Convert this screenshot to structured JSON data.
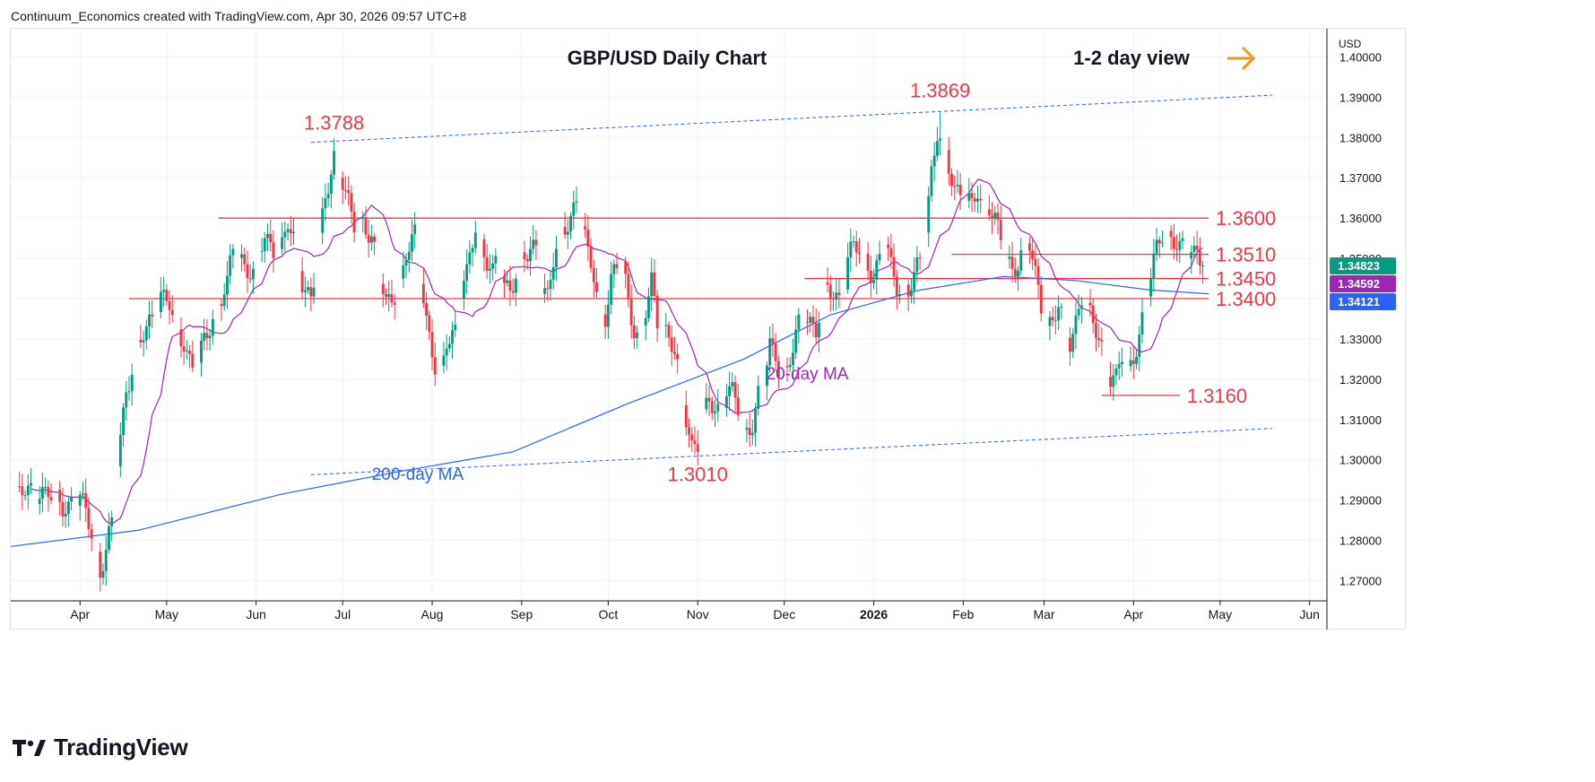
{
  "header": {
    "credit": "Continuum_Economics created with TradingView.com, Apr 30, 2026 09:57 UTC+8"
  },
  "footer": {
    "logo_text": "TradingView",
    "logo_icon": "tradingview-logo-icon"
  },
  "chart_data": {
    "type": "candlestick",
    "title": "GBP/USD Daily Chart",
    "view_label": "1-2 day view",
    "view_icon": "arrow-right-icon",
    "currency": "USD",
    "ylim": [
      1.265,
      1.407
    ],
    "y_ticks": [
      "1.27000",
      "1.28000",
      "1.29000",
      "1.30000",
      "1.31000",
      "1.32000",
      "1.33000",
      "1.34000",
      "1.35000",
      "1.36000",
      "1.37000",
      "1.38000",
      "1.39000",
      "1.40000"
    ],
    "y_tick_values": [
      1.27,
      1.28,
      1.29,
      1.3,
      1.31,
      1.32,
      1.33,
      1.34,
      1.35,
      1.36,
      1.37,
      1.38,
      1.39,
      1.4
    ],
    "x_months": [
      "Apr",
      "May",
      "Jun",
      "Jul",
      "Aug",
      "Sep",
      "Oct",
      "Nov",
      "Dec",
      "2026",
      "Feb",
      "Mar",
      "Apr",
      "May",
      "Jun"
    ],
    "x_month_days": [
      0,
      30,
      61,
      91,
      122,
      153,
      183,
      214,
      244,
      275,
      306,
      334,
      365,
      395,
      426
    ],
    "days_span": [
      -24,
      432
    ],
    "price_badges": [
      {
        "value": "1.34823",
        "price": 1.34823,
        "color": "#089981"
      },
      {
        "value": "1.34592",
        "price": 1.34592,
        "color": "#9c27b0"
      },
      {
        "value": "1.34121",
        "price": 1.34121,
        "color": "#2962ff"
      }
    ],
    "colors": {
      "up": "#089981",
      "down": "#f23645",
      "ma20": "#9c27b0",
      "ma200": "#2962ff",
      "level": "#f23645",
      "trend": "#2962ff",
      "accent": "#f7931a"
    },
    "levels": [
      {
        "label": "1.3600",
        "price": 1.36,
        "from_day": 48,
        "to_day": 391
      },
      {
        "label": "1.3510",
        "price": 1.351,
        "from_day": 302,
        "to_day": 391
      },
      {
        "label": "1.3450",
        "price": 1.345,
        "from_day": 251,
        "to_day": 391
      },
      {
        "label": "1.3400",
        "price": 1.34,
        "from_day": 17,
        "to_day": 391
      },
      {
        "label": "1.3160",
        "price": 1.316,
        "from_day": 354,
        "to_day": 381
      }
    ],
    "annotations": [
      {
        "label": "1.3788",
        "day": 88,
        "price": 1.3788
      },
      {
        "label": "1.3869",
        "day": 298,
        "price": 1.3869
      },
      {
        "label": "1.3010",
        "day": 214,
        "price": 1.301
      }
    ],
    "ma_labels": [
      {
        "label": "20-day MA",
        "day": 252,
        "price": 1.32
      },
      {
        "label": "200-day MA",
        "day": 117,
        "price": 1.295
      }
    ],
    "trendlines": [
      {
        "from": [
          80,
          1.3788
        ],
        "to": [
          413,
          1.3905
        ]
      },
      {
        "from": [
          80,
          1.2963
        ],
        "to": [
          413,
          1.3078
        ]
      }
    ],
    "key_points": [
      [
        -24,
        1.29
      ],
      [
        -16,
        1.293
      ],
      [
        -6,
        1.289
      ],
      [
        0,
        1.29
      ],
      [
        5,
        1.281
      ],
      [
        7,
        1.272
      ],
      [
        11,
        1.283
      ],
      [
        13,
        1.3
      ],
      [
        16,
        1.318
      ],
      [
        20,
        1.327
      ],
      [
        25,
        1.336
      ],
      [
        28,
        1.341
      ],
      [
        31,
        1.338
      ],
      [
        33,
        1.332
      ],
      [
        36,
        1.33
      ],
      [
        38,
        1.325
      ],
      [
        40,
        1.321
      ],
      [
        43,
        1.329
      ],
      [
        47,
        1.338
      ],
      [
        51,
        1.343
      ],
      [
        53,
        1.352
      ],
      [
        56,
        1.35
      ],
      [
        60,
        1.346
      ],
      [
        64,
        1.355
      ],
      [
        68,
        1.352
      ],
      [
        70,
        1.353
      ],
      [
        72,
        1.358
      ],
      [
        75,
        1.352
      ],
      [
        77,
        1.345
      ],
      [
        80,
        1.34
      ],
      [
        82,
        1.348
      ],
      [
        85,
        1.365
      ],
      [
        88,
        1.376
      ],
      [
        90,
        1.372
      ],
      [
        92,
        1.365
      ],
      [
        95,
        1.358
      ],
      [
        98,
        1.36
      ],
      [
        101,
        1.355
      ],
      [
        103,
        1.347
      ],
      [
        106,
        1.339
      ],
      [
        109,
        1.342
      ],
      [
        111,
        1.343
      ],
      [
        113,
        1.35
      ],
      [
        116,
        1.356
      ],
      [
        118,
        1.347
      ],
      [
        120,
        1.335
      ],
      [
        123,
        1.322
      ],
      [
        125,
        1.32
      ],
      [
        127,
        1.33
      ],
      [
        130,
        1.333
      ],
      [
        132,
        1.342
      ],
      [
        134,
        1.345
      ],
      [
        137,
        1.358
      ],
      [
        140,
        1.352
      ],
      [
        143,
        1.346
      ],
      [
        145,
        1.35
      ],
      [
        147,
        1.343
      ],
      [
        149,
        1.343
      ],
      [
        152,
        1.349
      ],
      [
        155,
        1.35
      ],
      [
        158,
        1.353
      ],
      [
        160,
        1.344
      ],
      [
        162,
        1.341
      ],
      [
        164,
        1.349
      ],
      [
        167,
        1.356
      ],
      [
        170,
        1.361
      ],
      [
        172,
        1.365
      ],
      [
        174,
        1.358
      ],
      [
        176,
        1.35
      ],
      [
        178,
        1.346
      ],
      [
        180,
        1.338
      ],
      [
        182,
        1.336
      ],
      [
        184,
        1.344
      ],
      [
        186,
        1.347
      ],
      [
        188,
        1.349
      ],
      [
        190,
        1.34
      ],
      [
        192,
        1.333
      ],
      [
        194,
        1.329
      ],
      [
        196,
        1.336
      ],
      [
        198,
        1.344
      ],
      [
        200,
        1.335
      ],
      [
        202,
        1.334
      ],
      [
        204,
        1.33
      ],
      [
        206,
        1.326
      ],
      [
        208,
        1.318
      ],
      [
        210,
        1.311
      ],
      [
        212,
        1.304
      ],
      [
        214,
        1.304
      ],
      [
        216,
        1.31
      ],
      [
        218,
        1.314
      ],
      [
        220,
        1.313
      ],
      [
        222,
        1.313
      ],
      [
        224,
        1.318
      ],
      [
        226,
        1.316
      ],
      [
        228,
        1.312
      ],
      [
        230,
        1.306
      ],
      [
        233,
        1.31
      ],
      [
        235,
        1.316
      ],
      [
        237,
        1.319
      ],
      [
        239,
        1.328
      ],
      [
        241,
        1.326
      ],
      [
        243,
        1.322
      ],
      [
        245,
        1.322
      ],
      [
        247,
        1.327
      ],
      [
        249,
        1.333
      ],
      [
        251,
        1.337
      ],
      [
        253,
        1.335
      ],
      [
        255,
        1.332
      ],
      [
        257,
        1.339
      ],
      [
        259,
        1.342
      ],
      [
        262,
        1.341
      ],
      [
        264,
        1.34
      ],
      [
        266,
        1.35
      ],
      [
        268,
        1.352
      ],
      [
        270,
        1.352
      ],
      [
        272,
        1.35
      ],
      [
        275,
        1.346
      ],
      [
        277,
        1.349
      ],
      [
        279,
        1.354
      ],
      [
        281,
        1.348
      ],
      [
        283,
        1.344
      ],
      [
        285,
        1.343
      ],
      [
        287,
        1.341
      ],
      [
        289,
        1.345
      ],
      [
        291,
        1.349
      ],
      [
        293,
        1.359
      ],
      [
        295,
        1.372
      ],
      [
        297,
        1.381
      ],
      [
        299,
        1.377
      ],
      [
        301,
        1.372
      ],
      [
        303,
        1.368
      ],
      [
        305,
        1.367
      ],
      [
        307,
        1.365
      ],
      [
        309,
        1.362
      ],
      [
        311,
        1.366
      ],
      [
        313,
        1.362
      ],
      [
        315,
        1.364
      ],
      [
        317,
        1.36
      ],
      [
        319,
        1.354
      ],
      [
        321,
        1.349
      ],
      [
        323,
        1.347
      ],
      [
        325,
        1.35
      ],
      [
        327,
        1.354
      ],
      [
        329,
        1.353
      ],
      [
        331,
        1.345
      ],
      [
        333,
        1.338
      ],
      [
        335,
        1.334
      ],
      [
        337,
        1.335
      ],
      [
        339,
        1.338
      ],
      [
        341,
        1.332
      ],
      [
        343,
        1.329
      ],
      [
        345,
        1.335
      ],
      [
        347,
        1.341
      ],
      [
        349,
        1.337
      ],
      [
        351,
        1.333
      ],
      [
        353,
        1.33
      ],
      [
        355,
        1.326
      ],
      [
        357,
        1.321
      ],
      [
        359,
        1.32
      ],
      [
        361,
        1.325
      ],
      [
        363,
        1.321
      ],
      [
        365,
        1.326
      ],
      [
        367,
        1.332
      ],
      [
        369,
        1.338
      ],
      [
        371,
        1.345
      ],
      [
        373,
        1.352
      ],
      [
        375,
        1.357
      ],
      [
        377,
        1.356
      ],
      [
        379,
        1.354
      ],
      [
        381,
        1.352
      ],
      [
        383,
        1.351
      ],
      [
        385,
        1.353
      ],
      [
        387,
        1.352
      ],
      [
        389,
        1.349
      ],
      [
        391,
        1.348
      ]
    ]
  }
}
